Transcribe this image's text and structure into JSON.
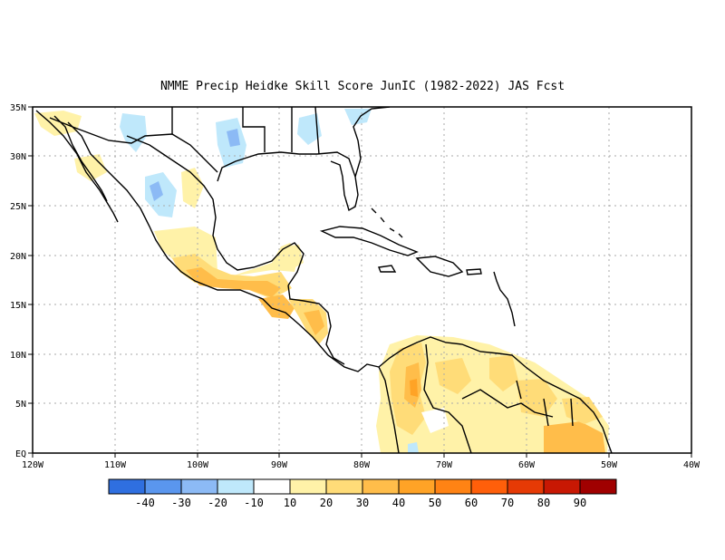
{
  "title": "NMME Precip Heidke Skill Score JunIC (1982-2022) JAS Fcst",
  "map": {
    "lon_ticks": [
      "120W",
      "110W",
      "100W",
      "90W",
      "80W",
      "70W",
      "60W",
      "50W",
      "40W"
    ],
    "lat_ticks": [
      "EQ",
      "5N",
      "10N",
      "15N",
      "20N",
      "25N",
      "30N",
      "35N"
    ]
  },
  "colorbar": {
    "colors": [
      "#2f6fe0",
      "#5a96ee",
      "#8cbaf5",
      "#bfe8fb",
      "#ffffff",
      "#fff2a8",
      "#ffdc78",
      "#ffbd4a",
      "#ffa326",
      "#ff8314",
      "#ff5f0a",
      "#e63a05",
      "#c81803",
      "#a00000"
    ],
    "labels": [
      "-40",
      "-30",
      "-20",
      "-10",
      "10",
      "20",
      "30",
      "40",
      "50",
      "60",
      "70",
      "80",
      "90"
    ]
  },
  "colors": {
    "coast": "#000000",
    "grid": "#aaaaaa"
  }
}
